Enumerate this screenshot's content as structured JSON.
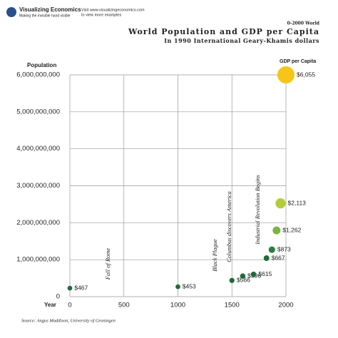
{
  "brand": {
    "name": "Visualizing Economics",
    "tagline": "Making the invisible hand visible",
    "visit": "Visit www.visualizingeconomics.com",
    "visit2": "to view more examples"
  },
  "chart_data": {
    "type": "bubble",
    "kicker": "0-2000 World",
    "title": "World Population and GDP per Capita",
    "subtitle": "In 1990 International Geary-Khamis dollars",
    "y_label": "Population",
    "x_label": "Year",
    "size_label": "GDP per Capita",
    "source": "Source: Angus Maddison, University of Groningen",
    "x": [
      0,
      1000,
      1500,
      1600,
      1700,
      1820,
      1870,
      1913,
      1950,
      2000
    ],
    "series": [
      {
        "values": [
          230000000,
          268000000,
          438000000,
          556000000,
          603000000,
          1041000000,
          1270000000,
          1791000000,
          2524000000,
          6000000000
        ],
        "sizes": [
          467,
          453,
          566,
          596,
          615,
          667,
          873,
          1262,
          2113,
          6055
        ],
        "value_labels": [
          "$467",
          "$453",
          "$566",
          "$596",
          "$615",
          "$667",
          "$873",
          "$1,262",
          "$2,113",
          "$6,055"
        ],
        "colors": [
          "#1f6b3a",
          "#1f6b3a",
          "#1f6b3a",
          "#1f6b3a",
          "#1f6b3a",
          "#1f6b3a",
          "#2e7d3e",
          "#7cb342",
          "#b5cc3a",
          "#f5c518"
        ]
      }
    ],
    "annotations": [
      "Fall of Rome",
      "Black Plague",
      "Columbus discovers America",
      "Industrial Revolution Begins"
    ],
    "xlim": [
      0,
      2000
    ],
    "xticks": [
      0,
      500,
      1000,
      1500,
      2000
    ],
    "ylim": [
      0,
      6000000000
    ],
    "yticks": [
      0,
      {
        "value": 1000000000,
        "label": "1,000,000,000"
      },
      {
        "value": 2000000000,
        "label": "2,000,000,000"
      },
      {
        "value": 3000000000,
        "label": "3,000,000,000"
      },
      {
        "value": 4000000000,
        "label": "4,000,000,000"
      },
      {
        "value": 5000000000,
        "label": "5,000,000,000"
      },
      {
        "value": 6000000000,
        "label": "6,000,000,000"
      }
    ],
    "grid": true
  }
}
